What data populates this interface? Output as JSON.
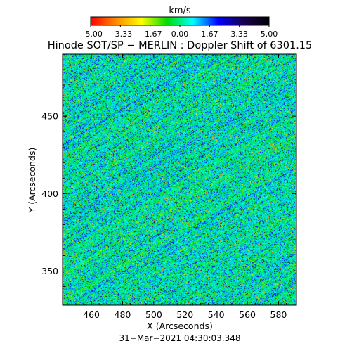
{
  "colorbar": {
    "unit_label": "km/s",
    "tick_labels": [
      "−5.00",
      "−3.33",
      "−1.67",
      "0.00",
      "1.67",
      "3.33",
      "5.00"
    ],
    "range": [
      -5.0,
      5.0
    ],
    "colors": [
      "#ff0000",
      "#ff8c00",
      "#ffff00",
      "#00dc00",
      "#00ffff",
      "#0000ff",
      "#1a0050",
      "#000000"
    ]
  },
  "title": "Hinode SOT/SP − MERLIN : Doppler Shift of 6301.15",
  "xlabel": "X (Arcseconds)",
  "ylabel": "Y (Arcseconds)",
  "timestamp": "31−Mar−2021 04:30:03.348",
  "chart_data": {
    "type": "heatmap",
    "title": "Hinode SOT/SP − MERLIN : Doppler Shift of 6301.15",
    "xlabel": "X (Arcseconds)",
    "ylabel": "Y (Arcseconds)",
    "xlim": [
      441.5,
      591.5
    ],
    "ylim": [
      328,
      490
    ],
    "x_ticks": [
      460,
      480,
      500,
      520,
      540,
      560,
      580
    ],
    "y_ticks": [
      350,
      400,
      450
    ],
    "x_tick_labels": [
      "460",
      "480",
      "500",
      "520",
      "540",
      "560",
      "580"
    ],
    "y_tick_labels": [
      "350",
      "400",
      "450"
    ],
    "value_range": [
      -5.0,
      5.0
    ],
    "value_unit": "km/s",
    "typical_value": 0.4,
    "colormap": "red-yellow-green-cyan-blue-black"
  }
}
